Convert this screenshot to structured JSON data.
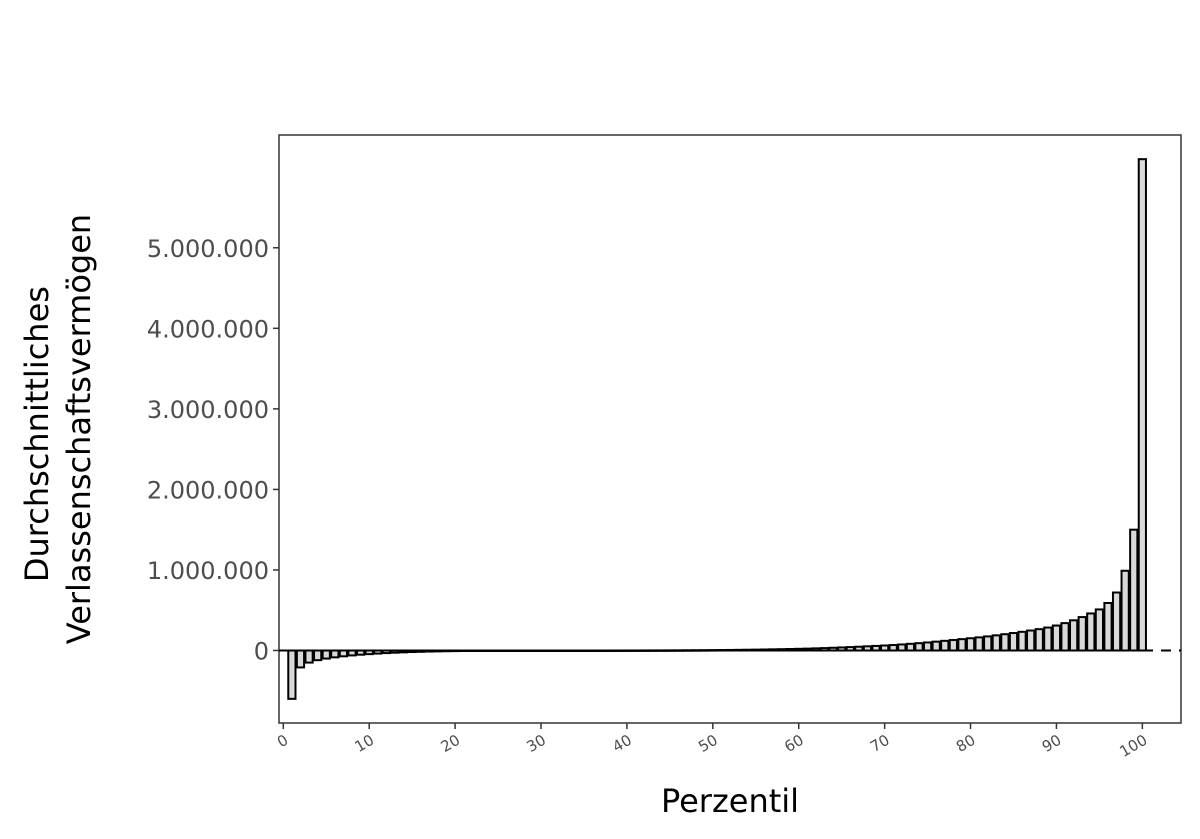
{
  "chart_data": {
    "type": "bar",
    "xlabel": "Perzentil",
    "ylabel_lines": [
      "Durchschnittliches",
      "Verlassenschaftsvermögen"
    ],
    "x_ticks": [
      0,
      10,
      20,
      30,
      40,
      50,
      60,
      70,
      80,
      90,
      100
    ],
    "x_tick_labels": [
      "0",
      "10",
      "20",
      "30",
      "40",
      "50",
      "60",
      "70",
      "80",
      "90",
      "100"
    ],
    "y_ticks": [
      0,
      1000000,
      2000000,
      3000000,
      4000000,
      5000000
    ],
    "y_tick_labels": [
      "0",
      "1.000.000",
      "2.000.000",
      "3.000.000",
      "4.000.000",
      "5.000.000"
    ],
    "xlim": [
      -0.5,
      104.5
    ],
    "ylim": [
      -900000,
      6400000
    ],
    "reference_line": {
      "y": 0,
      "style": "dashed"
    },
    "grid": false,
    "x": [
      1,
      2,
      3,
      4,
      5,
      6,
      7,
      8,
      9,
      10,
      11,
      12,
      13,
      14,
      15,
      16,
      17,
      18,
      19,
      20,
      21,
      22,
      23,
      24,
      25,
      26,
      27,
      28,
      29,
      30,
      31,
      32,
      33,
      34,
      35,
      36,
      37,
      38,
      39,
      40,
      41,
      42,
      43,
      44,
      45,
      46,
      47,
      48,
      49,
      50,
      51,
      52,
      53,
      54,
      55,
      56,
      57,
      58,
      59,
      60,
      61,
      62,
      63,
      64,
      65,
      66,
      67,
      68,
      69,
      70,
      71,
      72,
      73,
      74,
      75,
      76,
      77,
      78,
      79,
      80,
      81,
      82,
      83,
      84,
      85,
      86,
      87,
      88,
      89,
      90,
      91,
      92,
      93,
      94,
      95,
      96,
      97,
      98,
      99,
      100
    ],
    "values": [
      -600000,
      -210000,
      -150000,
      -120000,
      -100000,
      -85000,
      -72000,
      -61000,
      -52000,
      -45000,
      -38000,
      -32000,
      -27000,
      -23000,
      -19000,
      -16000,
      -13000,
      -11000,
      -9000,
      -7500,
      -6200,
      -5000,
      -4000,
      -3200,
      -2500,
      -1900,
      -1400,
      -1000,
      -700,
      -400,
      -200,
      -100,
      0,
      0,
      0,
      0,
      100,
      200,
      300,
      500,
      700,
      900,
      1200,
      1500,
      1900,
      2400,
      3000,
      3600,
      4300,
      5100,
      6000,
      7000,
      8200,
      9500,
      11000,
      12700,
      14500,
      16500,
      18700,
      21000,
      23500,
      26500,
      30000,
      34000,
      38000,
      42500,
      47000,
      52000,
      57000,
      62000,
      68000,
      75000,
      83000,
      91000,
      100000,
      110000,
      120000,
      130000,
      141000,
      152000,
      163000,
      175000,
      188000,
      202000,
      217000,
      232000,
      248000,
      265000,
      285000,
      310000,
      340000,
      375000,
      415000,
      460000,
      510000,
      590000,
      720000,
      990000,
      1500000,
      6100000
    ]
  }
}
